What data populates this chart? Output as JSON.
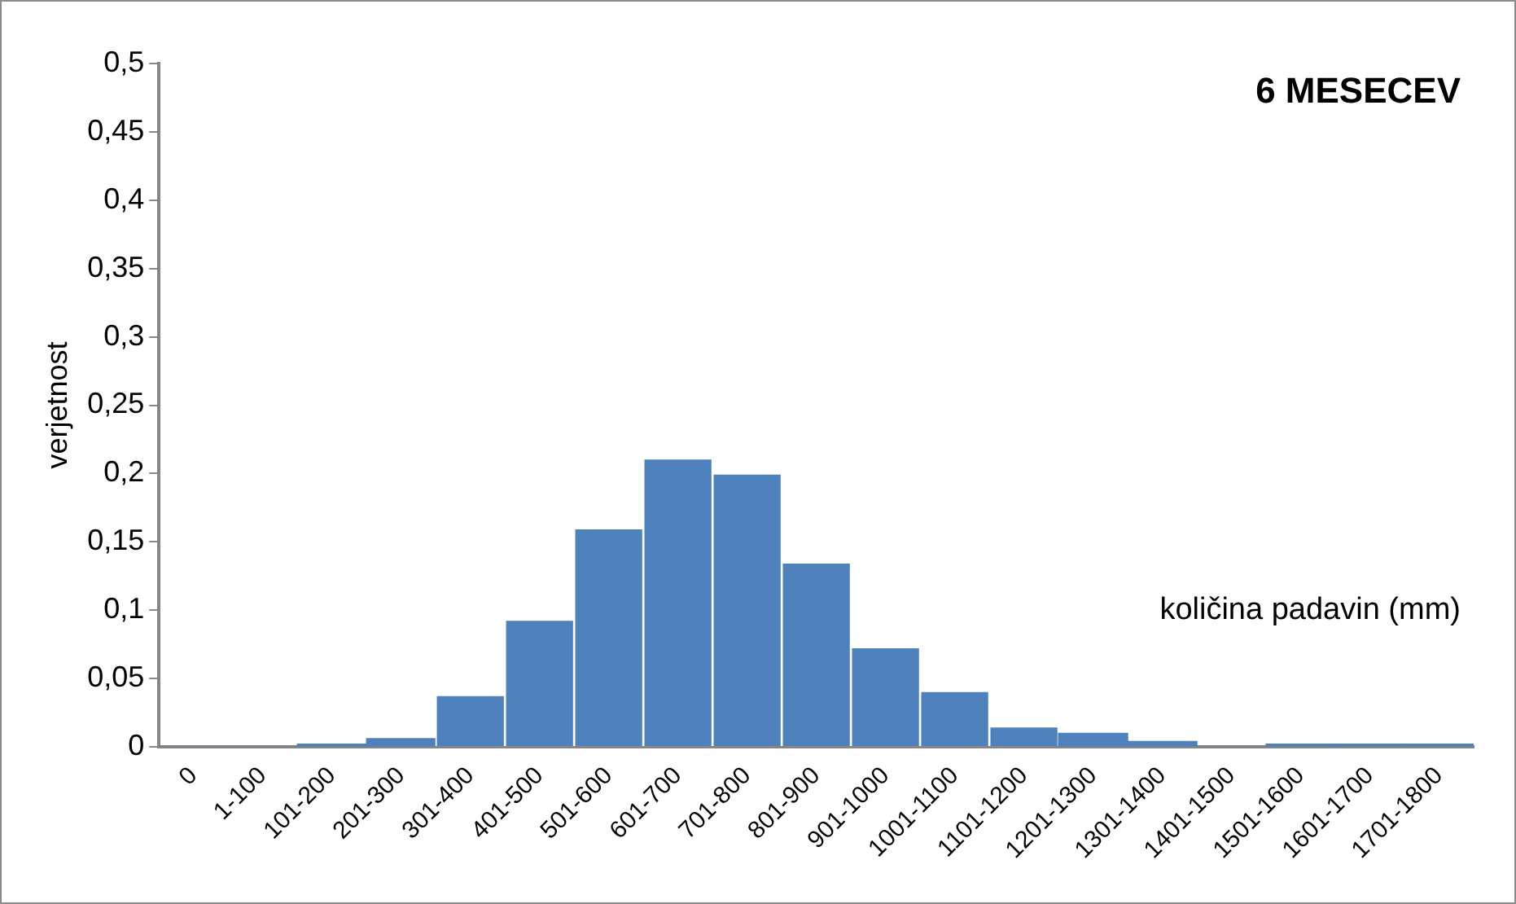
{
  "chart_data": {
    "type": "bar",
    "title": "6 MESECEV",
    "xlabel": "količina padavin (mm)",
    "ylabel": "verjetnost",
    "categories": [
      "0",
      "1-100",
      "101-200",
      "201-300",
      "301-400",
      "401-500",
      "501-600",
      "601-700",
      "701-800",
      "801-900",
      "901-1000",
      "1001-1100",
      "1101-1200",
      "1201-1300",
      "1301-1400",
      "1401-1500",
      "1501-1600",
      "1601-1700",
      "1701-1800"
    ],
    "values": [
      0,
      0,
      0.002,
      0.006,
      0.038,
      0.093,
      0.16,
      0.211,
      0.2,
      0.135,
      0.073,
      0.041,
      0.015,
      0.01,
      0.004,
      0,
      0.002,
      0.002,
      0.002
    ],
    "color": "#4f81bd",
    "ylim": [
      0,
      0.5
    ],
    "yticks": [
      0,
      {
        "value": 0.05,
        "label": "0,05"
      },
      {
        "value": 0.1,
        "label": "0,1"
      },
      {
        "value": 0.15,
        "label": "0,15"
      },
      {
        "value": 0.2,
        "label": "0,2"
      },
      {
        "value": 0.25,
        "label": "0,25"
      },
      {
        "value": 0.3,
        "label": "0,3"
      },
      {
        "value": 0.35,
        "label": "0,35"
      },
      {
        "value": 0.4,
        "label": "0,4"
      },
      {
        "value": 0.45,
        "label": "0,45"
      },
      {
        "value": 0.5,
        "label": "0,5"
      }
    ],
    "grid": false,
    "legend": false
  }
}
